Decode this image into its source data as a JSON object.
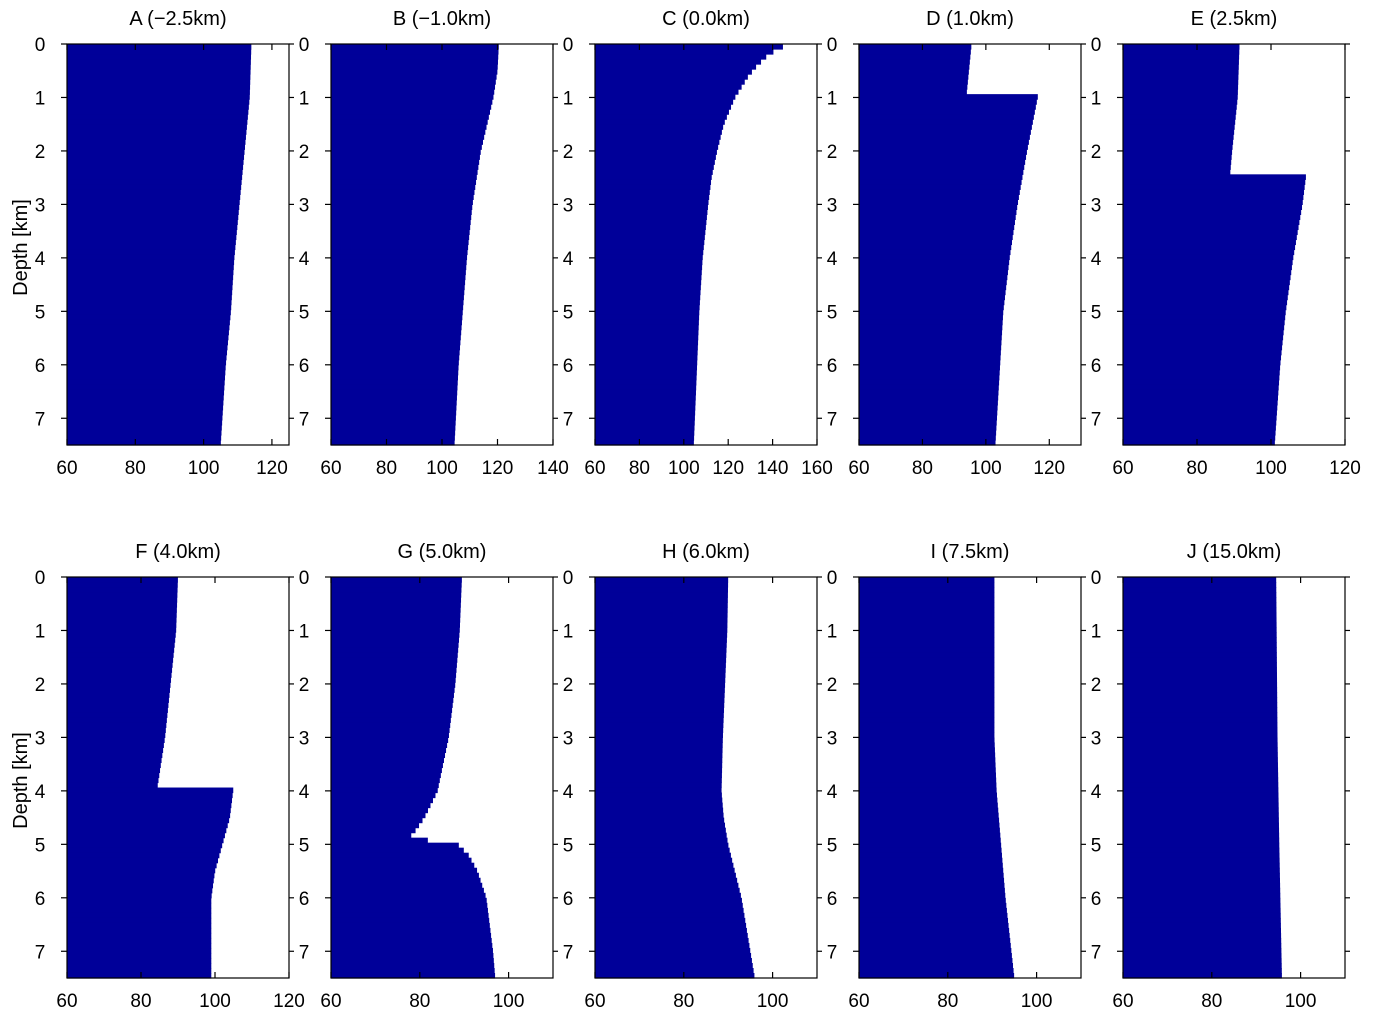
{
  "figure": {
    "bar_color": "#000099",
    "background": "#ffffff",
    "ylabel": "Depth [km]"
  },
  "chart_data": [
    {
      "type": "bar",
      "orientation": "horizontal",
      "title": "A (−2.5km)",
      "xlim": [
        60,
        125
      ],
      "xticks": [
        60,
        80,
        100,
        120
      ],
      "xtick_labels": [
        "60",
        "80",
        "100",
        "120"
      ],
      "ylabel": "Depth [km]",
      "ylim": [
        0,
        7.5
      ],
      "yticks": [
        0,
        1,
        2,
        3,
        4,
        5,
        6,
        7
      ],
      "ytick_labels": [
        "0",
        "1",
        "2",
        "3",
        "4",
        "5",
        "6",
        "7"
      ],
      "profile": [
        [
          0,
          114
        ],
        [
          1,
          113.5
        ],
        [
          2,
          112
        ],
        [
          3,
          110.5
        ],
        [
          4,
          109
        ],
        [
          5,
          108
        ],
        [
          6,
          106.5
        ],
        [
          7.5,
          105
        ]
      ]
    },
    {
      "type": "bar",
      "orientation": "horizontal",
      "title": "B (−1.0km)",
      "xlim": [
        60,
        140
      ],
      "xticks": [
        60,
        80,
        100,
        120,
        140
      ],
      "xtick_labels": [
        "60",
        "80",
        "100",
        "120",
        "140"
      ],
      "ylim": [
        0,
        7.5
      ],
      "yticks": [
        0,
        1,
        2,
        3,
        4,
        5,
        6,
        7
      ],
      "ytick_labels": [
        "0",
        "1",
        "2",
        "3",
        "4",
        "5",
        "6",
        "7"
      ],
      "profile": [
        [
          0,
          120.5
        ],
        [
          0.5,
          120
        ],
        [
          1,
          118.5
        ],
        [
          2,
          114
        ],
        [
          3,
          111
        ],
        [
          4,
          109
        ],
        [
          5,
          107.5
        ],
        [
          6,
          106
        ],
        [
          7.5,
          104.5
        ]
      ]
    },
    {
      "type": "bar",
      "orientation": "horizontal",
      "title": "C (0.0km)",
      "xlim": [
        60,
        160
      ],
      "xticks": [
        60,
        80,
        100,
        120,
        140,
        160
      ],
      "xtick_labels": [
        "60",
        "80",
        "100",
        "120",
        "140",
        "160"
      ],
      "ylim": [
        0,
        7.5
      ],
      "yticks": [
        0,
        1,
        2,
        3,
        4,
        5,
        6,
        7
      ],
      "ytick_labels": [
        "0",
        "1",
        "2",
        "3",
        "4",
        "5",
        "6",
        "7"
      ],
      "profile": [
        [
          0,
          147
        ],
        [
          0.1,
          142
        ],
        [
          0.2,
          138
        ],
        [
          0.4,
          133
        ],
        [
          0.6,
          129
        ],
        [
          0.8,
          126
        ],
        [
          1,
          123
        ],
        [
          1.5,
          118
        ],
        [
          2,
          115
        ],
        [
          2.5,
          112.5
        ],
        [
          3,
          111
        ],
        [
          4,
          108.5
        ],
        [
          5,
          107
        ],
        [
          6,
          106
        ],
        [
          7.5,
          104.5
        ]
      ]
    },
    {
      "type": "bar",
      "orientation": "horizontal",
      "title": "D (1.0km)",
      "xlim": [
        60,
        130
      ],
      "xticks": [
        60,
        80,
        100,
        120
      ],
      "xtick_labels": [
        "60",
        "80",
        "100",
        "120"
      ],
      "ylim": [
        0,
        7.5
      ],
      "yticks": [
        0,
        1,
        2,
        3,
        4,
        5,
        6,
        7
      ],
      "ytick_labels": [
        "0",
        "1",
        "2",
        "3",
        "4",
        "5",
        "6",
        "7"
      ],
      "profile": [
        [
          0,
          95.5
        ],
        [
          0.9,
          94
        ],
        [
          0.95,
          116.5
        ],
        [
          2,
          113
        ],
        [
          3,
          110
        ],
        [
          4,
          107.5
        ],
        [
          5,
          105.5
        ],
        [
          6,
          104.5
        ],
        [
          7.5,
          103
        ]
      ]
    },
    {
      "type": "bar",
      "orientation": "horizontal",
      "title": "E (2.5km)",
      "xlim": [
        60,
        120
      ],
      "xticks": [
        60,
        80,
        100,
        120
      ],
      "xtick_labels": [
        "60",
        "80",
        "100",
        "120"
      ],
      "ylim": [
        0,
        7.5
      ],
      "yticks": [
        0,
        1,
        2,
        3,
        4,
        5,
        6,
        7
      ],
      "ytick_labels": [
        "0",
        "1",
        "2",
        "3",
        "4",
        "5",
        "6",
        "7"
      ],
      "profile": [
        [
          0,
          91.5
        ],
        [
          1,
          91
        ],
        [
          2,
          89.5
        ],
        [
          2.4,
          89
        ],
        [
          2.45,
          109.5
        ],
        [
          3,
          108.5
        ],
        [
          4,
          106
        ],
        [
          5,
          104
        ],
        [
          6,
          102.5
        ],
        [
          7.5,
          101
        ]
      ]
    },
    {
      "type": "bar",
      "orientation": "horizontal",
      "title": "F (4.0km)",
      "xlim": [
        60,
        120
      ],
      "xticks": [
        60,
        80,
        100,
        120
      ],
      "xtick_labels": [
        "60",
        "80",
        "100",
        "120"
      ],
      "ylim": [
        0,
        7.5
      ],
      "yticks": [
        0,
        1,
        2,
        3,
        4,
        5,
        6,
        7
      ],
      "ytick_labels": [
        "0",
        "1",
        "2",
        "3",
        "4",
        "5",
        "6",
        "7"
      ],
      "profile": [
        [
          0,
          90
        ],
        [
          1,
          89.5
        ],
        [
          2,
          88
        ],
        [
          3,
          86.5
        ],
        [
          3.9,
          84.5
        ],
        [
          3.95,
          105
        ],
        [
          4.5,
          104
        ],
        [
          5,
          102
        ],
        [
          5.5,
          100
        ],
        [
          6,
          99
        ],
        [
          7.5,
          99
        ]
      ]
    },
    {
      "type": "bar",
      "orientation": "horizontal",
      "title": "G (5.0km)",
      "xlim": [
        60,
        110
      ],
      "xticks": [
        60,
        80,
        100
      ],
      "xtick_labels": [
        "60",
        "80",
        "100"
      ],
      "ylim": [
        0,
        7.5
      ],
      "yticks": [
        0,
        1,
        2,
        3,
        4,
        5,
        6,
        7
      ],
      "ytick_labels": [
        "0",
        "1",
        "2",
        "3",
        "4",
        "5",
        "6",
        "7"
      ],
      "profile": [
        [
          0,
          89.5
        ],
        [
          1,
          89
        ],
        [
          2,
          88
        ],
        [
          3,
          86.5
        ],
        [
          4,
          84
        ],
        [
          4.5,
          81
        ],
        [
          4.8,
          78.5
        ],
        [
          4.9,
          77
        ],
        [
          4.95,
          88
        ],
        [
          5.2,
          91
        ],
        [
          5.5,
          93
        ],
        [
          6,
          95
        ],
        [
          7,
          96.5
        ],
        [
          7.5,
          97
        ]
      ]
    },
    {
      "type": "bar",
      "orientation": "horizontal",
      "title": "H (6.0km)",
      "xlim": [
        60,
        110
      ],
      "xticks": [
        60,
        80,
        100
      ],
      "xtick_labels": [
        "60",
        "80",
        "100"
      ],
      "ylim": [
        0,
        7.5
      ],
      "yticks": [
        0,
        1,
        2,
        3,
        4,
        5,
        6,
        7
      ],
      "ytick_labels": [
        "0",
        "1",
        "2",
        "3",
        "4",
        "5",
        "6",
        "7"
      ],
      "profile": [
        [
          0,
          90
        ],
        [
          1,
          89.8
        ],
        [
          2,
          89.3
        ],
        [
          3,
          88.8
        ],
        [
          4,
          88.5
        ],
        [
          4.5,
          89
        ],
        [
          5,
          90
        ],
        [
          5.5,
          91.5
        ],
        [
          6,
          93
        ],
        [
          6.5,
          94
        ],
        [
          7.5,
          96
        ]
      ]
    },
    {
      "type": "bar",
      "orientation": "horizontal",
      "title": "I (7.5km)",
      "xlim": [
        60,
        110
      ],
      "xticks": [
        60,
        80,
        100
      ],
      "xtick_labels": [
        "60",
        "80",
        "100"
      ],
      "ylim": [
        0,
        7.5
      ],
      "yticks": [
        0,
        1,
        2,
        3,
        4,
        5,
        6,
        7
      ],
      "ytick_labels": [
        "0",
        "1",
        "2",
        "3",
        "4",
        "5",
        "6",
        "7"
      ],
      "profile": [
        [
          0,
          90.5
        ],
        [
          3,
          90.5
        ],
        [
          4,
          91
        ],
        [
          5,
          92
        ],
        [
          6,
          93
        ],
        [
          7.5,
          95
        ]
      ]
    },
    {
      "type": "bar",
      "orientation": "horizontal",
      "title": "J (15.0km)",
      "xlim": [
        60,
        110
      ],
      "xticks": [
        60,
        80,
        100
      ],
      "xtick_labels": [
        "60",
        "80",
        "100"
      ],
      "ylim": [
        0,
        7.5
      ],
      "yticks": [
        0,
        1,
        2,
        3,
        4,
        5,
        6,
        7
      ],
      "ytick_labels": [
        "0",
        "1",
        "2",
        "3",
        "4",
        "5",
        "6",
        "7"
      ],
      "profile": [
        [
          0,
          94.5
        ],
        [
          3,
          94.8
        ],
        [
          5,
          95.2
        ],
        [
          7.5,
          95.8
        ]
      ]
    }
  ]
}
